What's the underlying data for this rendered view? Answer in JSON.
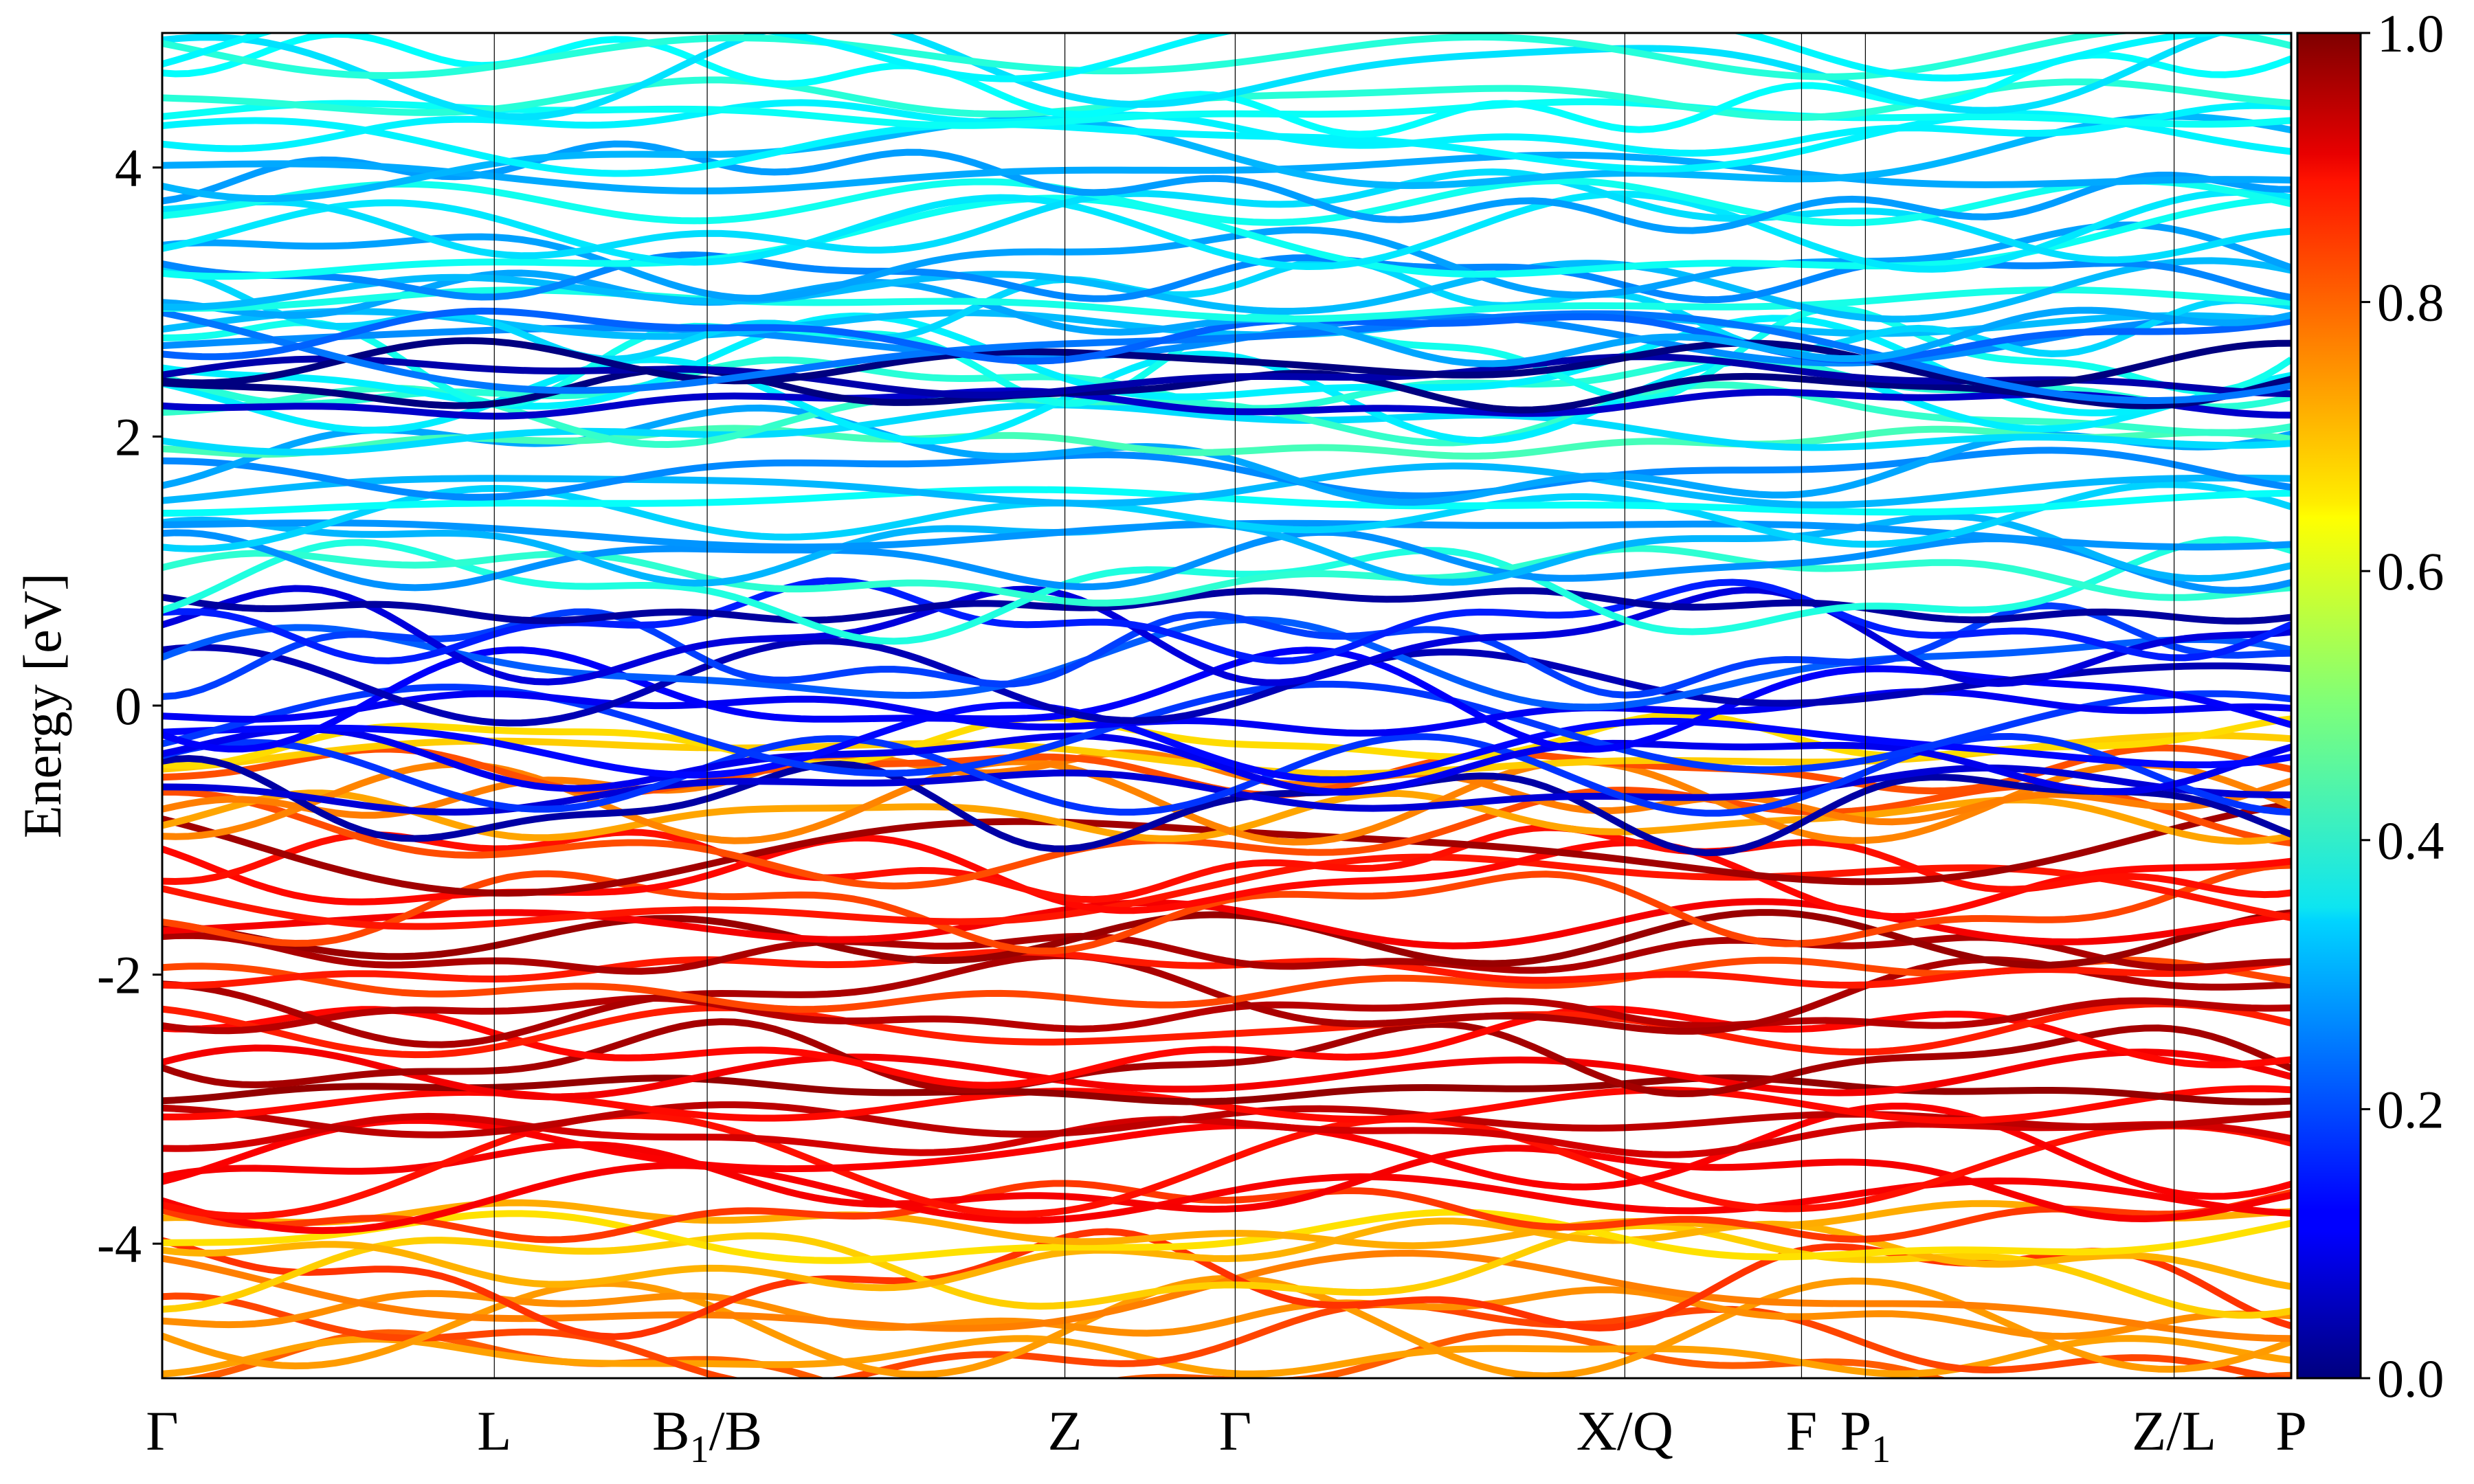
{
  "chart_data": {
    "type": "line",
    "title": "",
    "ylabel": "Energy [eV]",
    "xlabel": "",
    "ylim": [
      -5,
      5
    ],
    "y_ticks": [
      {
        "value": 4,
        "label": "4"
      },
      {
        "value": 2,
        "label": "2"
      },
      {
        "value": 0,
        "label": "0"
      },
      {
        "value": -2,
        "label": "-2"
      },
      {
        "value": -4,
        "label": "-4"
      }
    ],
    "k_path": {
      "range": [
        0,
        1
      ],
      "points": [
        {
          "label": "Γ",
          "pos": 0.0
        },
        {
          "label": "L",
          "pos": 0.156
        },
        {
          "label": "B1/B",
          "main": "B",
          "sub": "1",
          "suffix": "/B",
          "pos": 0.256
        },
        {
          "label": "Z",
          "pos": 0.424
        },
        {
          "label": "Γ",
          "pos": 0.504
        },
        {
          "label": "X/Q",
          "pos": 0.687
        },
        {
          "label": "F",
          "pos": 0.77
        },
        {
          "label": "P1",
          "main": "P",
          "sub": "1",
          "suffix": "",
          "pos": 0.8
        },
        {
          "label": "Z/L",
          "pos": 0.945
        },
        {
          "label": "P",
          "pos": 1.0
        }
      ]
    },
    "grid": false,
    "vertical_lines_at_high_symmetry_points": true,
    "colormap": "jet",
    "colorbar": {
      "range": [
        0.0,
        1.0
      ],
      "ticks": [
        {
          "value": 0.0,
          "label": "0.0"
        },
        {
          "value": 0.2,
          "label": "0.2"
        },
        {
          "value": 0.4,
          "label": "0.4"
        },
        {
          "value": 0.6,
          "label": "0.6"
        },
        {
          "value": 0.8,
          "label": "0.8"
        },
        {
          "value": 1.0,
          "label": "1.0"
        }
      ],
      "placement": "right"
    },
    "band_groups": [
      {
        "energy_range": [
          -5.0,
          -3.7
        ],
        "weight": 0.75
      },
      {
        "energy_range": [
          -3.7,
          -1.0
        ],
        "weight": 0.88
      },
      {
        "energy_range": [
          -1.0,
          -0.2
        ],
        "weight": 0.72
      },
      {
        "energy_range": [
          -0.8,
          0.8
        ],
        "weight": 0.12
      },
      {
        "energy_range": [
          0.8,
          3.0
        ],
        "weight": 0.35
      },
      {
        "energy_range": [
          2.2,
          2.6
        ],
        "weight": 0.04
      },
      {
        "energy_range": [
          2.6,
          5.0
        ],
        "weight": 0.32
      }
    ]
  }
}
